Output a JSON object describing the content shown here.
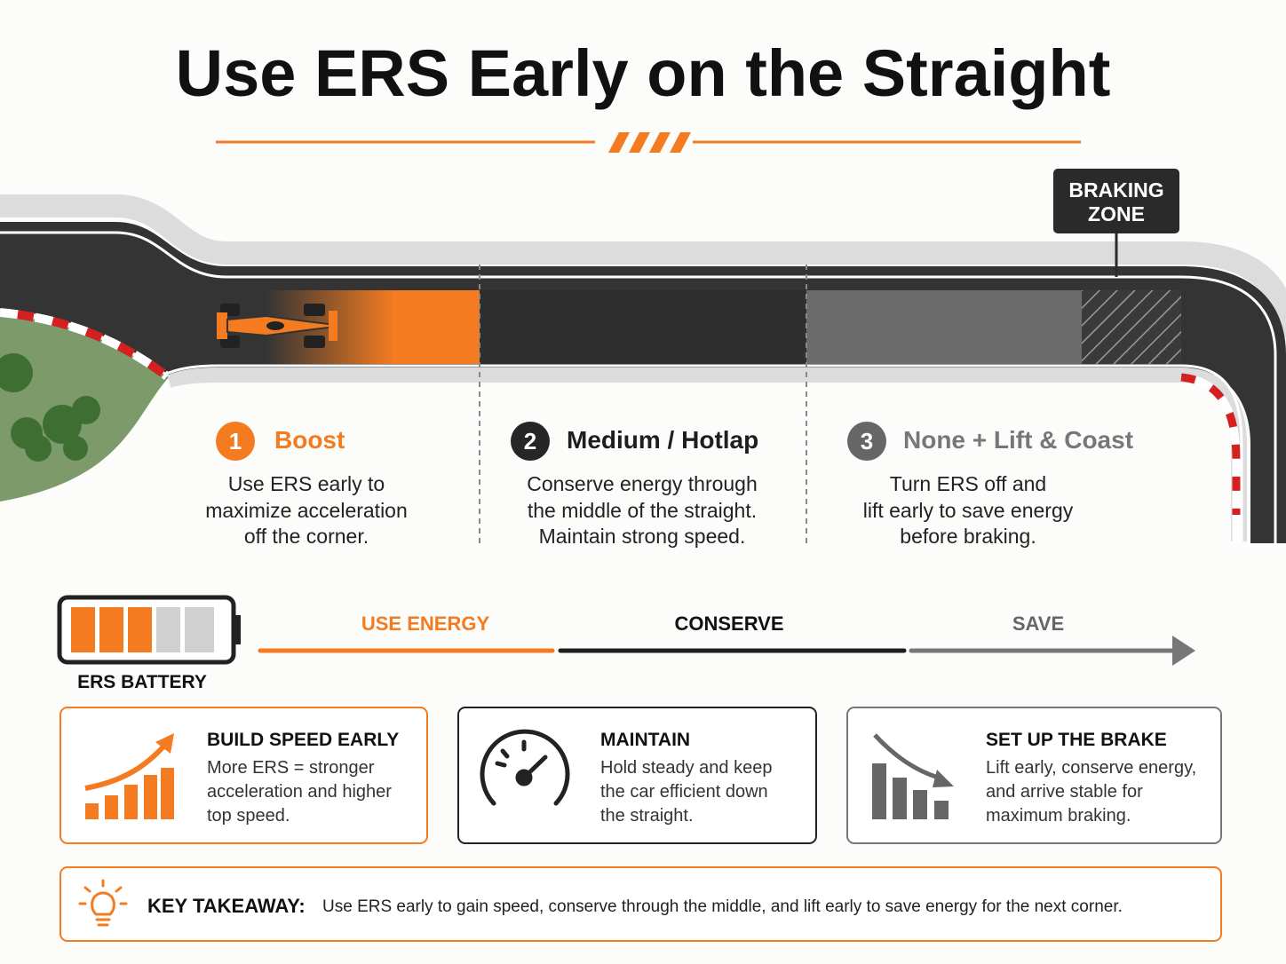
{
  "title": "Use ERS Early on the Straight",
  "braking_zone": [
    "BRAKING",
    "ZONE"
  ],
  "phases": [
    {
      "number": "1",
      "title": "Boost",
      "lines": [
        "Use ERS early to",
        "maximize acceleration",
        "off the corner."
      ]
    },
    {
      "number": "2",
      "title": "Medium / Hotlap",
      "lines": [
        "Conserve energy through",
        "the middle of the straight.",
        "Maintain strong speed."
      ]
    },
    {
      "number": "3",
      "title": "None + Lift & Coast",
      "lines": [
        "Turn ERS off and",
        "lift early to save energy",
        "before braking."
      ]
    }
  ],
  "battery_label": "ERS BATTERY",
  "energy_labels": [
    "USE ENERGY",
    "CONSERVE",
    "SAVE"
  ],
  "cards": [
    {
      "title": "BUILD SPEED EARLY",
      "lines": [
        "More ERS = stronger",
        "acceleration and higher",
        "top speed."
      ]
    },
    {
      "title": "MAINTAIN",
      "lines": [
        "Hold steady and keep",
        "the car efficient down",
        "the straight."
      ]
    },
    {
      "title": "SET UP THE BRAKE",
      "lines": [
        "Lift early, conserve energy,",
        "and arrive stable for",
        "maximum braking."
      ]
    }
  ],
  "takeaway": {
    "label": "KEY TAKEAWAY:",
    "text": "Use ERS early to gain speed, conserve through the middle, and lift early to save energy for the next corner."
  }
}
